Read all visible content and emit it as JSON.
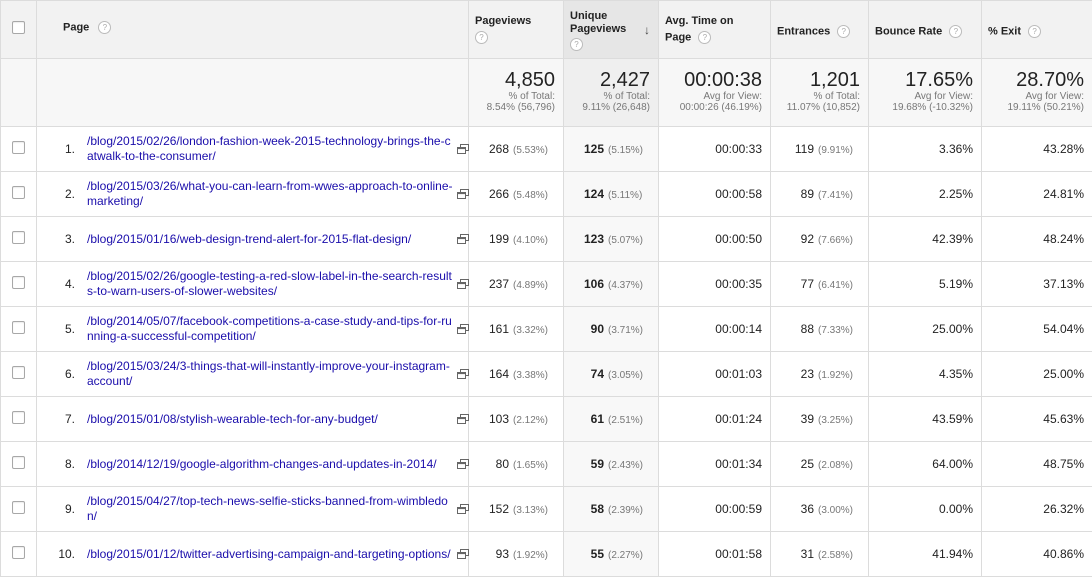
{
  "headers": {
    "page": "Page",
    "pageviews": "Pageviews",
    "unique_line1": "Unique",
    "unique_line2": "Pageviews",
    "avg_line1": "Avg. Time on",
    "avg_line2": "Page",
    "entrances": "Entrances",
    "bounce": "Bounce Rate",
    "exit": "% Exit",
    "help_glyph": "?",
    "sort_glyph": "↓"
  },
  "totals": {
    "pageviews": {
      "value": "4,850",
      "line1": "% of Total:",
      "line2": "8.54% (56,796)"
    },
    "unique": {
      "value": "2,427",
      "line1": "% of Total:",
      "line2": "9.11% (26,648)"
    },
    "avg_time": {
      "value": "00:00:38",
      "line1": "Avg for View:",
      "line2": "00:00:26 (46.19%)"
    },
    "entrances": {
      "value": "1,201",
      "line1": "% of Total:",
      "line2": "11.07% (10,852)"
    },
    "bounce": {
      "value": "17.65%",
      "line1": "Avg for View:",
      "line2": "19.68% (-10.32%)"
    },
    "exit": {
      "value": "28.70%",
      "line1": "Avg for View:",
      "line2": "19.11% (50.21%)"
    }
  },
  "rows": [
    {
      "idx": "1.",
      "url": "/blog/2015/02/26/london-fashion-week-2015-technology-brings-the-catwalk-to-the-consumer/",
      "pv": "268",
      "pv_pct": "(5.53%)",
      "uv": "125",
      "uv_pct": "(5.15%)",
      "time": "00:00:33",
      "ent": "119",
      "ent_pct": "(9.91%)",
      "bounce": "3.36%",
      "exit": "43.28%"
    },
    {
      "idx": "2.",
      "url": "/blog/2015/03/26/what-you-can-learn-from-wwes-approach-to-online-marketing/",
      "pv": "266",
      "pv_pct": "(5.48%)",
      "uv": "124",
      "uv_pct": "(5.11%)",
      "time": "00:00:58",
      "ent": "89",
      "ent_pct": "(7.41%)",
      "bounce": "2.25%",
      "exit": "24.81%"
    },
    {
      "idx": "3.",
      "url": "/blog/2015/01/16/web-design-trend-alert-for-2015-flat-design/",
      "pv": "199",
      "pv_pct": "(4.10%)",
      "uv": "123",
      "uv_pct": "(5.07%)",
      "time": "00:00:50",
      "ent": "92",
      "ent_pct": "(7.66%)",
      "bounce": "42.39%",
      "exit": "48.24%"
    },
    {
      "idx": "4.",
      "url": "/blog/2015/02/26/google-testing-a-red-slow-label-in-the-search-results-to-warn-users-of-slower-websites/",
      "pv": "237",
      "pv_pct": "(4.89%)",
      "uv": "106",
      "uv_pct": "(4.37%)",
      "time": "00:00:35",
      "ent": "77",
      "ent_pct": "(6.41%)",
      "bounce": "5.19%",
      "exit": "37.13%"
    },
    {
      "idx": "5.",
      "url": "/blog/2014/05/07/facebook-competitions-a-case-study-and-tips-for-running-a-successful-competition/",
      "pv": "161",
      "pv_pct": "(3.32%)",
      "uv": "90",
      "uv_pct": "(3.71%)",
      "time": "00:00:14",
      "ent": "88",
      "ent_pct": "(7.33%)",
      "bounce": "25.00%",
      "exit": "54.04%"
    },
    {
      "idx": "6.",
      "url": "/blog/2015/03/24/3-things-that-will-instantly-improve-your-instagram-account/",
      "pv": "164",
      "pv_pct": "(3.38%)",
      "uv": "74",
      "uv_pct": "(3.05%)",
      "time": "00:01:03",
      "ent": "23",
      "ent_pct": "(1.92%)",
      "bounce": "4.35%",
      "exit": "25.00%"
    },
    {
      "idx": "7.",
      "url": "/blog/2015/01/08/stylish-wearable-tech-for-any-budget/",
      "pv": "103",
      "pv_pct": "(2.12%)",
      "uv": "61",
      "uv_pct": "(2.51%)",
      "time": "00:01:24",
      "ent": "39",
      "ent_pct": "(3.25%)",
      "bounce": "43.59%",
      "exit": "45.63%"
    },
    {
      "idx": "8.",
      "url": "/blog/2014/12/19/google-algorithm-changes-and-updates-in-2014/",
      "pv": "80",
      "pv_pct": "(1.65%)",
      "uv": "59",
      "uv_pct": "(2.43%)",
      "time": "00:01:34",
      "ent": "25",
      "ent_pct": "(2.08%)",
      "bounce": "64.00%",
      "exit": "48.75%"
    },
    {
      "idx": "9.",
      "url": "/blog/2015/04/27/top-tech-news-selfie-sticks-banned-from-wimbledon/",
      "pv": "152",
      "pv_pct": "(3.13%)",
      "uv": "58",
      "uv_pct": "(2.39%)",
      "time": "00:00:59",
      "ent": "36",
      "ent_pct": "(3.00%)",
      "bounce": "0.00%",
      "exit": "26.32%"
    },
    {
      "idx": "10.",
      "url": "/blog/2015/01/12/twitter-advertising-campaign-and-targeting-options/",
      "pv": "93",
      "pv_pct": "(1.92%)",
      "uv": "55",
      "uv_pct": "(2.27%)",
      "time": "00:01:58",
      "ent": "31",
      "ent_pct": "(2.58%)",
      "bounce": "41.94%",
      "exit": "40.86%"
    }
  ]
}
